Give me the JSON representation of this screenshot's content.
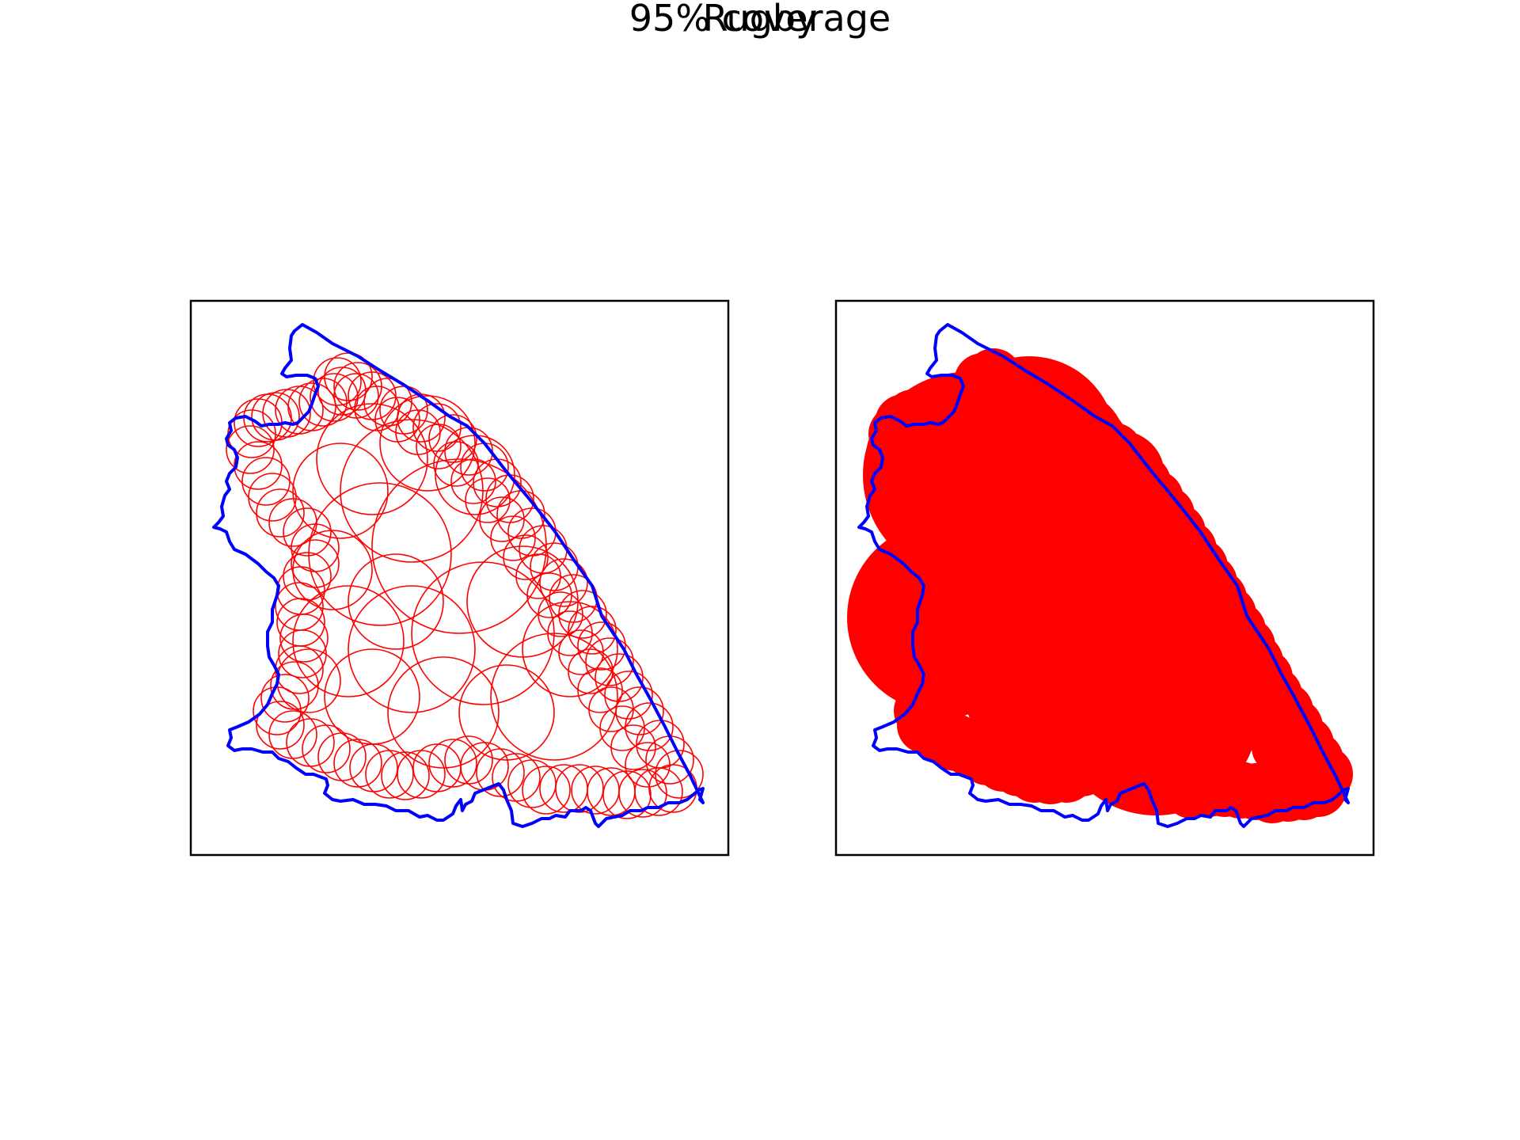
{
  "figure": {
    "title": "Rugby",
    "subtitle": "95% coverage"
  },
  "colors": {
    "boundary": "#0000ff",
    "coverage": "#ff0000",
    "frame": "#000000",
    "background": "#ffffff"
  },
  "panels": [
    {
      "name": "circles-outline",
      "style": "outlined-circles"
    },
    {
      "name": "coverage-filled",
      "style": "filled-union"
    }
  ]
}
